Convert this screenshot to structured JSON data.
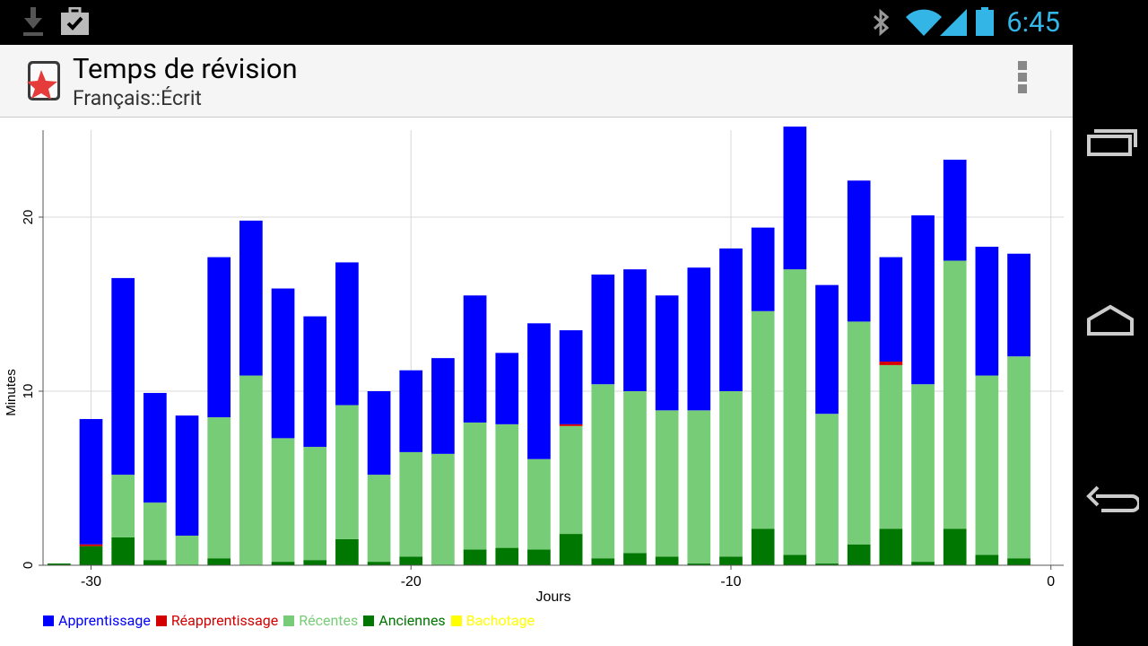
{
  "status_bar": {
    "time": "6:45",
    "icons": [
      "download-icon",
      "briefcase-check-icon",
      "bluetooth-icon",
      "wifi-icon",
      "signal-icon",
      "battery-icon"
    ]
  },
  "action_bar": {
    "title": "Temps de révision",
    "subtitle": "Français::Écrit",
    "app_icon": "anki-star-icon",
    "overflow_icon": "overflow-menu-icon"
  },
  "nav_bar": {
    "icons": [
      "recent-apps-icon",
      "home-icon",
      "back-icon"
    ]
  },
  "colors": {
    "Apprentissage": "#0000ff",
    "Réapprentissage": "#d40000",
    "Récentes": "#77cc77",
    "Anciennes": "#007700",
    "Bachotage": "#ffff00"
  },
  "chart_data": {
    "type": "bar",
    "stacked": true,
    "title": "",
    "xlabel": "Jours",
    "ylabel": "Minutes",
    "xlim": [
      -31.5,
      0.4
    ],
    "ylim": [
      0,
      25
    ],
    "xticks": [
      -30,
      -20,
      -10,
      0
    ],
    "yticks": [
      0,
      10,
      20
    ],
    "grid": true,
    "legend_position": "bottom-left",
    "x": [
      -31,
      -30,
      -29,
      -28,
      -27,
      -26,
      -25,
      -24,
      -23,
      -22,
      -21,
      -20,
      -19,
      -18,
      -17,
      -16,
      -15,
      -14,
      -13,
      -12,
      -11,
      -10,
      -9,
      -8,
      -7,
      -6,
      -5,
      -4,
      -3,
      -2,
      -1
    ],
    "series": [
      {
        "name": "Anciennes",
        "color": "#007700",
        "values": [
          0.1,
          1.1,
          1.6,
          0.3,
          0,
          0.4,
          0,
          0.2,
          0.3,
          1.5,
          0.2,
          0.5,
          0,
          0.9,
          1.0,
          0.9,
          1.8,
          0.4,
          0.7,
          0.5,
          0.1,
          0.5,
          2.1,
          0.6,
          0.1,
          1.2,
          2.1,
          0.2,
          2.1,
          0.6,
          0.4
        ]
      },
      {
        "name": "Récentes",
        "color": "#77cc77",
        "values": [
          0,
          0,
          3.6,
          3.3,
          1.7,
          8.1,
          10.9,
          7.1,
          6.5,
          7.7,
          5.0,
          6.0,
          6.4,
          7.3,
          7.1,
          5.2,
          6.2,
          10.0,
          9.3,
          8.4,
          8.8,
          9.5,
          12.5,
          16.4,
          8.6,
          12.8,
          9.4,
          10.2,
          15.4,
          10.3,
          11.6
        ]
      },
      {
        "name": "Réapprentissage",
        "color": "#d40000",
        "values": [
          0,
          0.1,
          0,
          0,
          0,
          0,
          0,
          0,
          0,
          0,
          0,
          0,
          0,
          0,
          0,
          0,
          0.1,
          0,
          0,
          0,
          0,
          0,
          0,
          0,
          0,
          0,
          0.2,
          0,
          0,
          0,
          0
        ]
      },
      {
        "name": "Apprentissage",
        "color": "#0000ff",
        "values": [
          0,
          7.2,
          11.3,
          6.3,
          6.9,
          9.2,
          8.9,
          8.6,
          7.5,
          8.2,
          4.8,
          4.7,
          5.5,
          7.3,
          4.1,
          7.8,
          5.4,
          6.3,
          7.0,
          6.6,
          8.2,
          8.2,
          4.8,
          8.2,
          7.4,
          8.1,
          6.0,
          9.7,
          5.8,
          7.4,
          5.9
        ]
      },
      {
        "name": "Bachotage",
        "color": "#ffff00",
        "values": [
          0,
          0,
          0,
          0,
          0,
          0,
          0,
          0,
          0,
          0,
          0,
          0,
          0,
          0,
          0,
          0,
          0,
          0,
          0,
          0,
          0,
          0,
          0,
          0,
          0,
          0,
          0,
          0,
          0,
          0,
          0
        ]
      }
    ],
    "legend_order": [
      "Apprentissage",
      "Réapprentissage",
      "Récentes",
      "Anciennes",
      "Bachotage"
    ]
  }
}
